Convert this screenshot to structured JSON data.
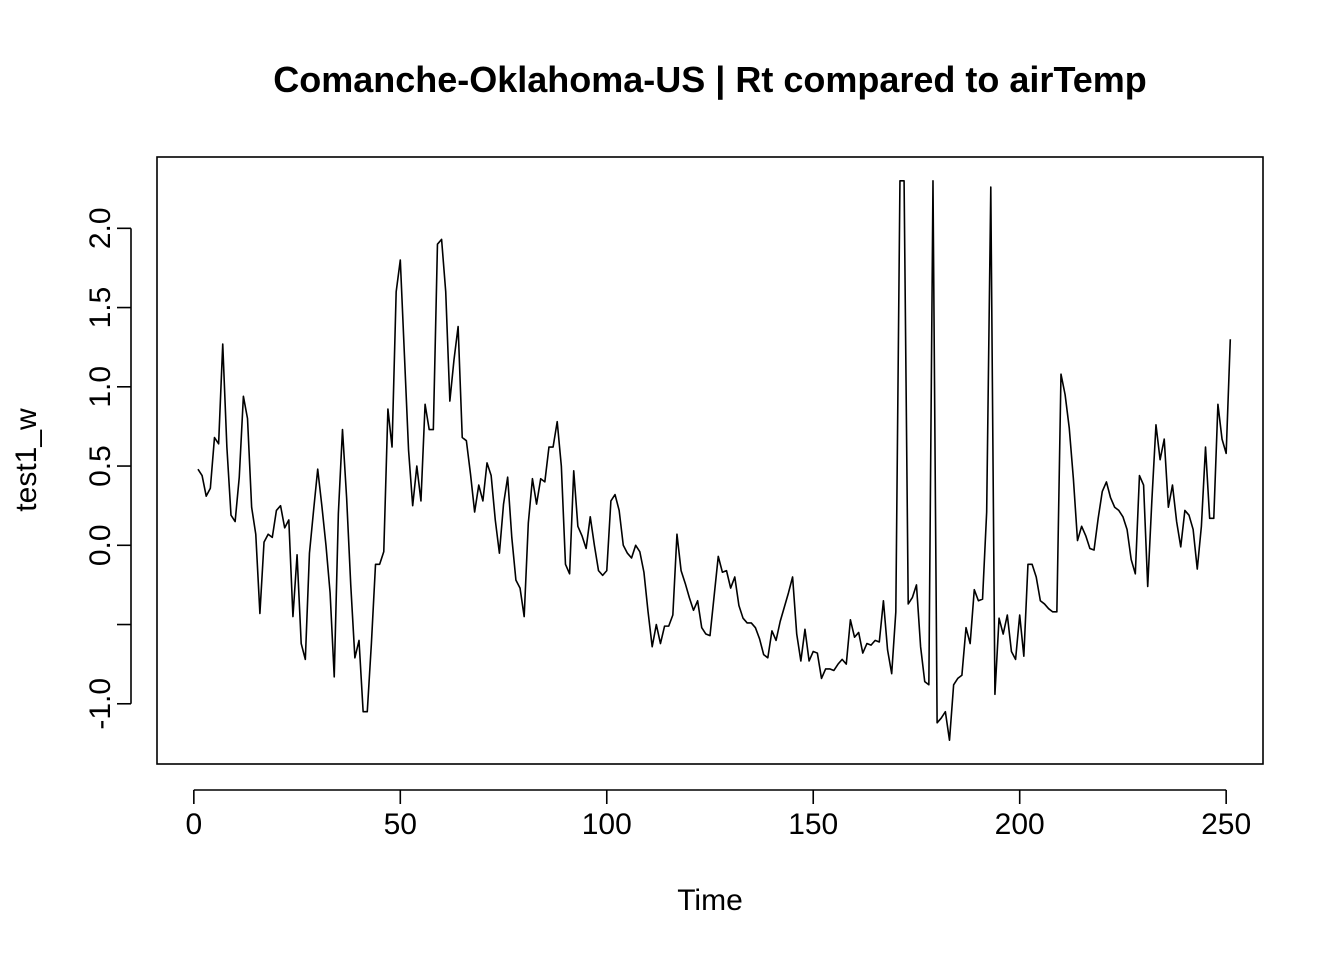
{
  "chart_data": {
    "type": "line",
    "title": "Comanche-Oklahoma-US | Rt compared to airTemp",
    "xlabel": "Time",
    "ylabel": "test1_w",
    "xlim": [
      -8.92,
      258.92
    ],
    "ylim": [
      -1.38,
      2.45
    ],
    "x_ticks": [
      0,
      50,
      100,
      150,
      200,
      250
    ],
    "x_tick_labels": [
      "0",
      "50",
      "100",
      "150",
      "200",
      "250"
    ],
    "y_ticks": [
      -1.0,
      -0.5,
      0.0,
      0.5,
      1.0,
      1.5,
      2.0
    ],
    "y_tick_labels": [
      "-1.0",
      "",
      "0.0",
      "0.5",
      "1.0",
      "1.5",
      "2.0"
    ],
    "grid": false,
    "legend": "none",
    "line_color": "#000000",
    "series": [
      {
        "x_start": 1,
        "values": [
          0.48,
          0.44,
          0.31,
          0.36,
          0.68,
          0.64,
          1.27,
          0.62,
          0.19,
          0.15,
          0.43,
          0.94,
          0.8,
          0.24,
          0.07,
          -0.43,
          0.02,
          0.07,
          0.05,
          0.22,
          0.25,
          0.11,
          0.16,
          -0.45,
          -0.06,
          -0.62,
          -0.72,
          -0.05,
          0.22,
          0.48,
          0.25,
          0.0,
          -0.3,
          -0.83,
          0.2,
          0.73,
          0.3,
          -0.25,
          -0.71,
          -0.6,
          -1.05,
          -1.05,
          -0.62,
          -0.12,
          -0.12,
          -0.04,
          0.86,
          0.62,
          1.6,
          1.8,
          1.2,
          0.6,
          0.25,
          0.5,
          0.28,
          0.89,
          0.73,
          0.73,
          1.9,
          1.93,
          1.6,
          0.91,
          1.17,
          1.38,
          0.68,
          0.66,
          0.45,
          0.21,
          0.38,
          0.28,
          0.52,
          0.44,
          0.16,
          -0.05,
          0.26,
          0.43,
          0.05,
          -0.22,
          -0.27,
          -0.45,
          0.14,
          0.42,
          0.26,
          0.42,
          0.4,
          0.62,
          0.62,
          0.78,
          0.5,
          -0.12,
          -0.18,
          0.47,
          0.12,
          0.06,
          -0.02,
          0.18,
          0.0,
          -0.16,
          -0.19,
          -0.16,
          0.28,
          0.32,
          0.22,
          0.0,
          -0.05,
          -0.08,
          0.0,
          -0.04,
          -0.17,
          -0.42,
          -0.64,
          -0.5,
          -0.62,
          -0.51,
          -0.51,
          -0.44,
          0.07,
          -0.16,
          -0.24,
          -0.33,
          -0.41,
          -0.35,
          -0.52,
          -0.56,
          -0.57,
          -0.32,
          -0.07,
          -0.17,
          -0.16,
          -0.27,
          -0.2,
          -0.38,
          -0.46,
          -0.49,
          -0.49,
          -0.52,
          -0.59,
          -0.69,
          -0.71,
          -0.54,
          -0.6,
          -0.48,
          -0.39,
          -0.3,
          -0.2,
          -0.56,
          -0.73,
          -0.53,
          -0.73,
          -0.67,
          -0.68,
          -0.84,
          -0.78,
          -0.78,
          -0.79,
          -0.75,
          -0.72,
          -0.75,
          -0.47,
          -0.58,
          -0.55,
          -0.68,
          -0.62,
          -0.63,
          -0.6,
          -0.61,
          -0.35,
          -0.66,
          -0.81,
          -0.42,
          2.3,
          2.3,
          -0.37,
          -0.33,
          -0.25,
          -0.64,
          -0.86,
          -0.88,
          2.3,
          -1.12,
          -1.09,
          -1.05,
          -1.23,
          -0.88,
          -0.84,
          -0.82,
          -0.52,
          -0.62,
          -0.28,
          -0.35,
          -0.34,
          0.21,
          2.26,
          -0.94,
          -0.46,
          -0.56,
          -0.44,
          -0.67,
          -0.72,
          -0.44,
          -0.7,
          -0.12,
          -0.12,
          -0.2,
          -0.35,
          -0.37,
          -0.4,
          -0.42,
          -0.42,
          1.08,
          0.95,
          0.74,
          0.42,
          0.03,
          0.12,
          0.06,
          -0.02,
          -0.03,
          0.17,
          0.34,
          0.4,
          0.3,
          0.24,
          0.22,
          0.18,
          0.1,
          -0.09,
          -0.18,
          0.44,
          0.38,
          -0.26,
          0.28,
          0.76,
          0.54,
          0.67,
          0.24,
          0.38,
          0.15,
          -0.01,
          0.22,
          0.19,
          0.1,
          -0.15,
          0.12,
          0.62,
          0.17,
          0.17,
          0.89,
          0.67,
          0.58,
          1.3
        ]
      }
    ]
  }
}
